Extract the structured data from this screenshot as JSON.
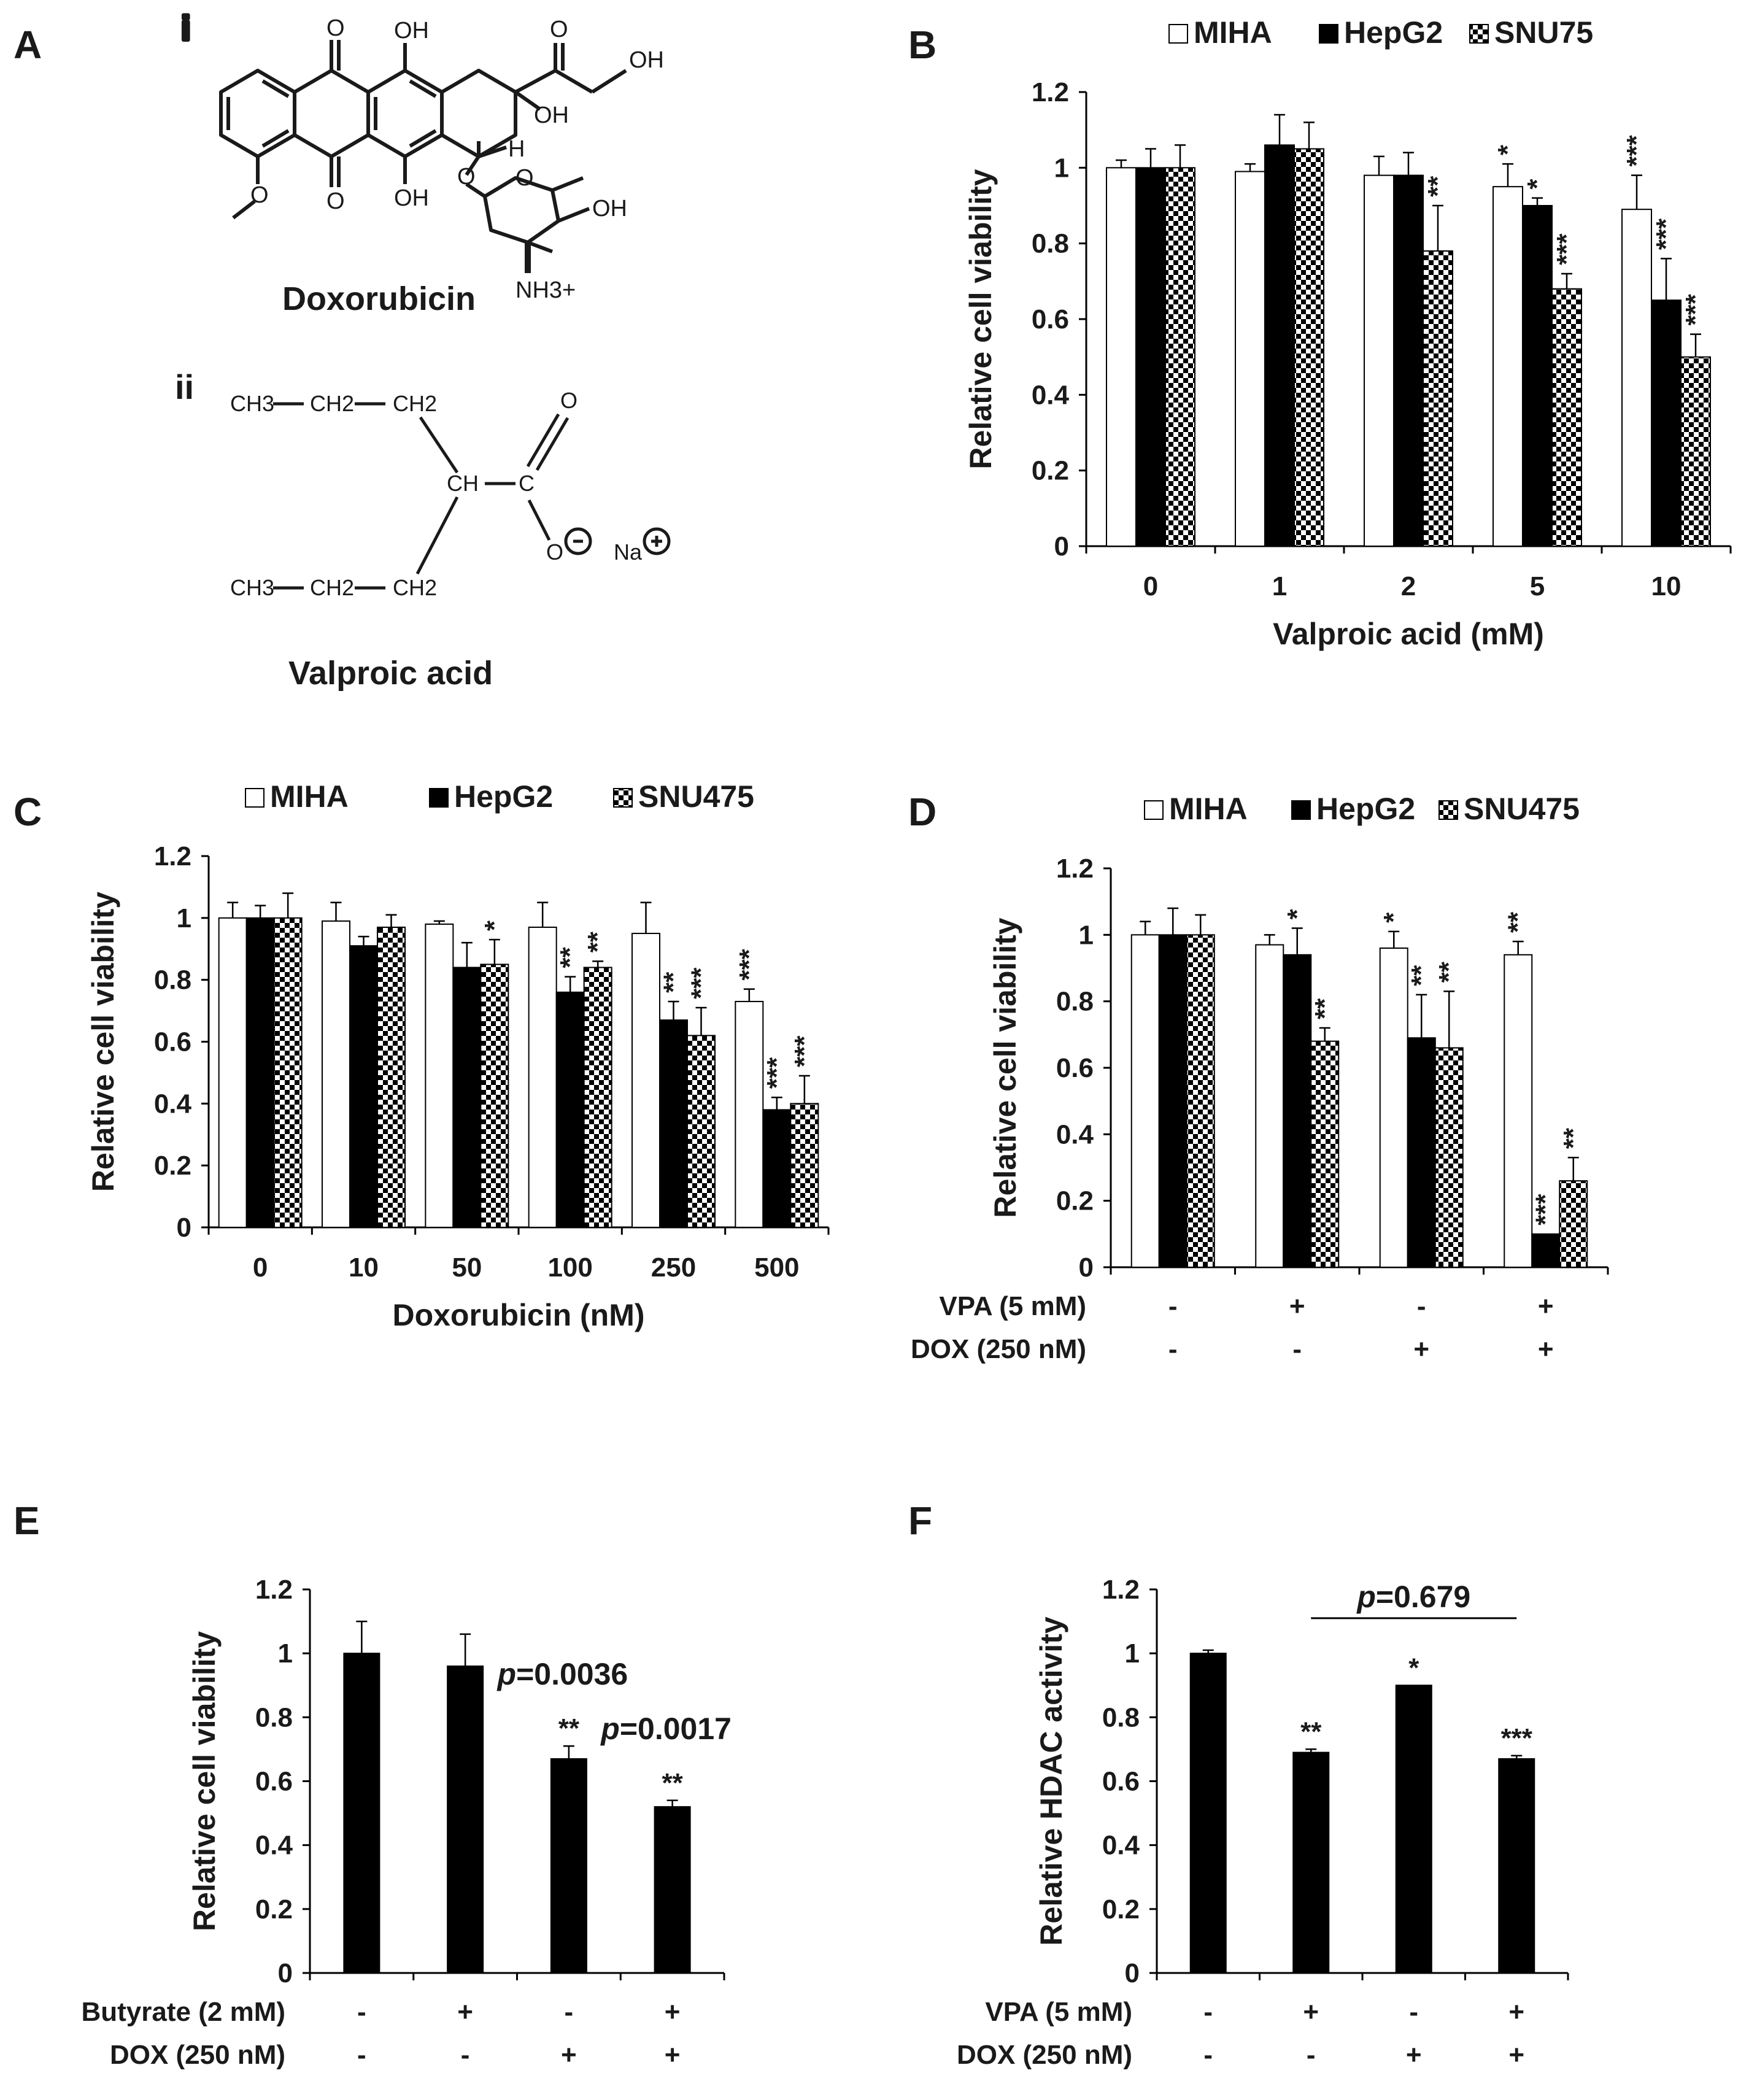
{
  "panel_labels": {
    "A": "A",
    "B": "B",
    "C": "C",
    "D": "D",
    "E": "E",
    "F": "F"
  },
  "structures": {
    "sub_i": "i",
    "sub_ii": "ii",
    "doxorubicin_name": "Doxorubicin",
    "valproic_name": "Valproic acid",
    "doxorubicin_atoms": [
      "O",
      "OH",
      "O",
      "OH",
      "OH",
      "O",
      "OH",
      "H",
      "O",
      "O",
      "O",
      "OH",
      "NH3+"
    ],
    "valproic_atoms": [
      "CH3",
      "CH2",
      "CH2",
      "CH",
      "C",
      "O",
      "O",
      "Na",
      "CH3",
      "CH2",
      "CH2"
    ]
  },
  "colors": {
    "MIHA": "#ffffff",
    "HepG2": "#000000",
    "SNU": "checkerboard",
    "axis": "#000000"
  },
  "chart_data": [
    {
      "id": "B",
      "type": "bar",
      "categories": [
        "0",
        "1",
        "2",
        "5",
        "10"
      ],
      "series": [
        {
          "name": "MIHA",
          "values": [
            1.0,
            0.99,
            0.98,
            0.95,
            0.89
          ],
          "errors": [
            0.02,
            0.02,
            0.05,
            0.06,
            0.09
          ]
        },
        {
          "name": "HepG2",
          "values": [
            1.0,
            1.06,
            0.98,
            0.9,
            0.65
          ],
          "errors": [
            0.05,
            0.08,
            0.06,
            0.02,
            0.11
          ]
        },
        {
          "name": "SNU75",
          "values": [
            1.0,
            1.05,
            0.78,
            0.68,
            0.5
          ],
          "errors": [
            0.06,
            0.07,
            0.12,
            0.04,
            0.06
          ]
        }
      ],
      "significance": [
        [
          "",
          "",
          "",
          "*",
          "***"
        ],
        [
          "",
          "",
          "",
          "*",
          "***"
        ],
        [
          "",
          "",
          "**",
          "***",
          "***"
        ]
      ],
      "xlabel": "Valproic acid (mM)",
      "ylabel": "Relative cell viability",
      "ylim": [
        0,
        1.2
      ],
      "yticks": [
        "0",
        "0.2",
        "0.4",
        "0.6",
        "0.8",
        "1",
        "1.2"
      ],
      "legend": [
        "MIHA",
        "HepG2",
        "SNU75"
      ],
      "legend_position": "top"
    },
    {
      "id": "C",
      "type": "bar",
      "categories": [
        "0",
        "10",
        "50",
        "100",
        "250",
        "500"
      ],
      "series": [
        {
          "name": "MIHA",
          "values": [
            1.0,
            0.99,
            0.98,
            0.97,
            0.95,
            0.73
          ],
          "errors": [
            0.05,
            0.06,
            0.01,
            0.08,
            0.1,
            0.04
          ]
        },
        {
          "name": "HepG2",
          "values": [
            1.0,
            0.91,
            0.84,
            0.76,
            0.67,
            0.38
          ],
          "errors": [
            0.04,
            0.03,
            0.08,
            0.05,
            0.06,
            0.04
          ]
        },
        {
          "name": "SNU475",
          "values": [
            1.0,
            0.97,
            0.85,
            0.84,
            0.62,
            0.4
          ],
          "errors": [
            0.08,
            0.04,
            0.08,
            0.02,
            0.09,
            0.09
          ]
        }
      ],
      "significance": [
        [
          "",
          "",
          "",
          "",
          "",
          "***"
        ],
        [
          "",
          "",
          "",
          "**",
          "**",
          "***"
        ],
        [
          "",
          "",
          "*",
          "**",
          "***",
          "***"
        ]
      ],
      "xlabel": "Doxorubicin (nM)",
      "ylabel": "Relative cell viability",
      "ylim": [
        0,
        1.2
      ],
      "yticks": [
        "0",
        "0.2",
        "0.4",
        "0.6",
        "0.8",
        "1",
        "1.2"
      ],
      "legend": [
        "MIHA",
        "HepG2",
        "SNU475"
      ],
      "legend_position": "top"
    },
    {
      "id": "D",
      "type": "bar",
      "categories": [
        "1",
        "2",
        "3",
        "4"
      ],
      "series": [
        {
          "name": "MIHA",
          "values": [
            1.0,
            0.97,
            0.96,
            0.94
          ],
          "errors": [
            0.04,
            0.03,
            0.05,
            0.04
          ]
        },
        {
          "name": "HepG2",
          "values": [
            1.0,
            0.94,
            0.69,
            0.1
          ],
          "errors": [
            0.08,
            0.08,
            0.13,
            0.0
          ]
        },
        {
          "name": "SNU475",
          "values": [
            1.0,
            0.68,
            0.66,
            0.26
          ],
          "errors": [
            0.06,
            0.04,
            0.17,
            0.07
          ]
        }
      ],
      "significance": [
        [
          "",
          "",
          "*",
          "**"
        ],
        [
          "",
          "*",
          "**",
          "***"
        ],
        [
          "",
          "**",
          "**",
          "**"
        ]
      ],
      "ylabel": "Relative cell viability",
      "ylim": [
        0,
        1.2
      ],
      "yticks": [
        "0",
        "0.2",
        "0.4",
        "0.6",
        "0.8",
        "1",
        "1.2"
      ],
      "legend": [
        "MIHA",
        "HepG2",
        "SNU475"
      ],
      "legend_position": "top",
      "conditions": [
        {
          "label": "VPA (5 mM)",
          "values": [
            "-",
            "+",
            "-",
            "+"
          ]
        },
        {
          "label": "DOX (250 nM)",
          "values": [
            "-",
            "-",
            "+",
            "+"
          ]
        }
      ]
    },
    {
      "id": "E",
      "type": "bar",
      "categories": [
        "1",
        "2",
        "3",
        "4"
      ],
      "series": [
        {
          "values": [
            1.0,
            0.96,
            0.67,
            0.52
          ],
          "errors": [
            0.1,
            0.1,
            0.04,
            0.02
          ]
        }
      ],
      "significance": [
        [
          "",
          "",
          "**",
          "**"
        ]
      ],
      "pvalues": [
        "",
        "",
        "p=0.0036",
        "p=0.0017"
      ],
      "ylabel": "Relative cell viability",
      "ylim": [
        0,
        1.2
      ],
      "yticks": [
        "0",
        "0.2",
        "0.4",
        "0.6",
        "0.8",
        "1",
        "1.2"
      ],
      "conditions": [
        {
          "label": "Butyrate (2 mM)",
          "values": [
            "-",
            "+",
            "-",
            "+"
          ]
        },
        {
          "label": "DOX (250 nM)",
          "values": [
            "-",
            "-",
            "+",
            "+"
          ]
        }
      ]
    },
    {
      "id": "F",
      "type": "bar",
      "categories": [
        "1",
        "2",
        "3",
        "4"
      ],
      "series": [
        {
          "values": [
            1.0,
            0.69,
            0.9,
            0.67
          ],
          "errors": [
            0.01,
            0.01,
            0.0,
            0.01
          ]
        }
      ],
      "significance": [
        [
          "",
          "**",
          "*",
          "***"
        ]
      ],
      "bracket": {
        "text": "p=0.679",
        "from": 1,
        "to": 3
      },
      "ylabel": "Relative HDAC activity",
      "ylim": [
        0,
        1.2
      ],
      "yticks": [
        "0",
        "0.2",
        "0.4",
        "0.6",
        "0.8",
        "1",
        "1.2"
      ],
      "conditions": [
        {
          "label": "VPA (5 mM)",
          "values": [
            "-",
            "+",
            "-",
            "+"
          ]
        },
        {
          "label": "DOX (250 nM)",
          "values": [
            "-",
            "-",
            "+",
            "+"
          ]
        }
      ]
    }
  ]
}
